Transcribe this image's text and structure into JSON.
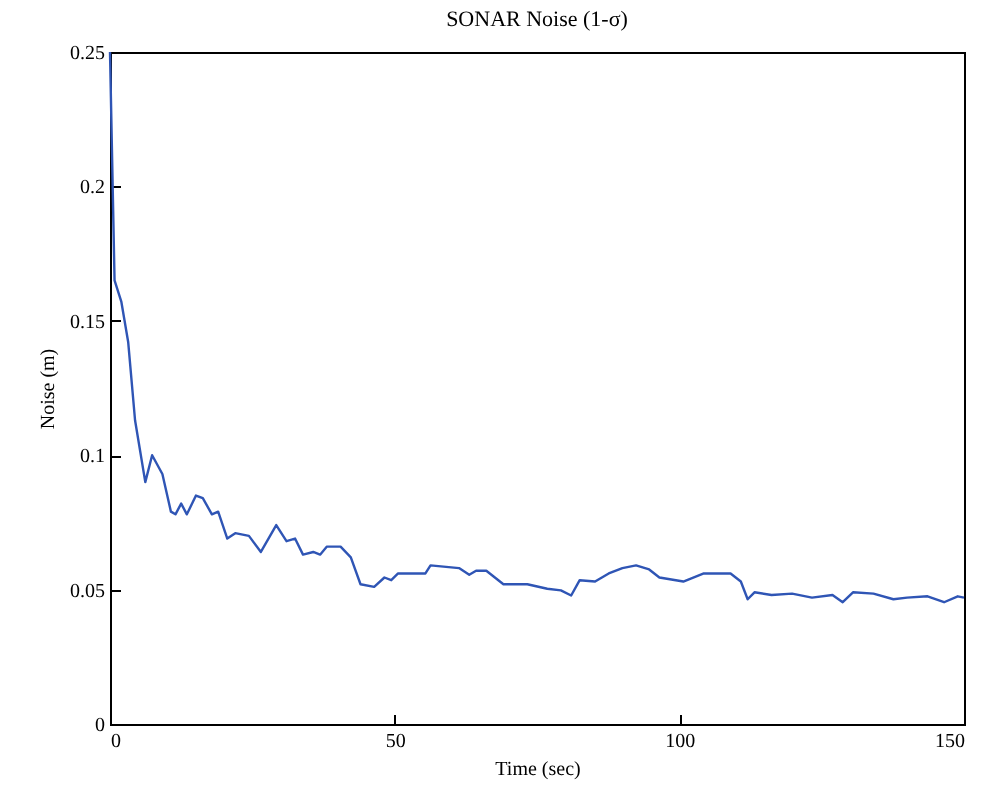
{
  "chart_data": {
    "type": "line",
    "title": "SONAR Noise (1-σ)",
    "xlabel": "Time (sec)",
    "ylabel": "Noise (m)",
    "xlim": [
      0,
      150
    ],
    "ylim": [
      0,
      0.25
    ],
    "xticks": [
      0,
      50,
      100,
      150
    ],
    "yticks": [
      0,
      0.05,
      0.1,
      0.15,
      0.2,
      0.25
    ],
    "grid": false,
    "legend": false,
    "series": [
      {
        "color": "#2f55b5",
        "x": [
          0,
          0.8,
          2,
          3.2,
          4.4,
          6.2,
          7.4,
          9.2,
          10.7,
          11.5,
          12.5,
          13.5,
          15.1,
          16.3,
          17.9,
          19,
          20.6,
          22,
          24.4,
          26.5,
          29.2,
          31,
          32.5,
          33.9,
          35.7,
          36.9,
          38.1,
          40.5,
          42.3,
          44,
          46.4,
          48.2,
          49.4,
          50.6,
          55.4,
          56.3,
          61.3,
          63.1,
          64.3,
          66.1,
          69.1,
          73.3,
          76.8,
          79.2,
          81,
          82.5,
          85.2,
          87.6,
          90,
          92.4,
          94.7,
          96.5,
          100.7,
          104.3,
          109,
          110.8,
          112,
          113.2,
          116.2,
          119.8,
          123.3,
          126.9,
          128.7,
          130.5,
          134.1,
          137.6,
          140,
          143.6,
          146.5,
          148.9,
          150
        ],
        "values": [
          0.25,
          0.165,
          0.157,
          0.142,
          0.113,
          0.09,
          0.1,
          0.093,
          0.079,
          0.078,
          0.082,
          0.078,
          0.085,
          0.084,
          0.078,
          0.079,
          0.069,
          0.071,
          0.07,
          0.064,
          0.074,
          0.068,
          0.069,
          0.063,
          0.064,
          0.063,
          0.066,
          0.066,
          0.062,
          0.052,
          0.051,
          0.0545,
          0.0535,
          0.056,
          0.056,
          0.059,
          0.058,
          0.0555,
          0.057,
          0.057,
          0.052,
          0.052,
          0.0503,
          0.0497,
          0.0478,
          0.0535,
          0.053,
          0.056,
          0.058,
          0.059,
          0.0575,
          0.0545,
          0.053,
          0.056,
          0.056,
          0.053,
          0.0464,
          0.049,
          0.048,
          0.0485,
          0.047,
          0.048,
          0.0453,
          0.049,
          0.0485,
          0.0464,
          0.047,
          0.0475,
          0.0453,
          0.0475,
          0.047
        ]
      }
    ]
  }
}
